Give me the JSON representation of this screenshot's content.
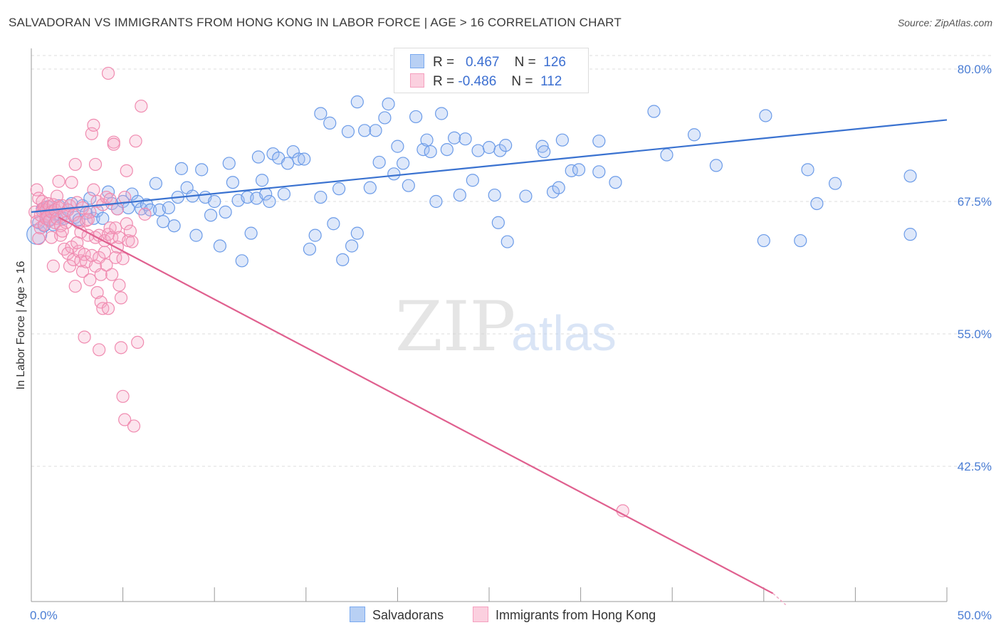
{
  "title": "SALVADORAN VS IMMIGRANTS FROM HONG KONG IN LABOR FORCE | AGE > 16 CORRELATION CHART",
  "source": "Source: ZipAtlas.com",
  "watermark": {
    "zip": "ZIP",
    "atlas": "atlas"
  },
  "legend": {
    "rows": [
      {
        "r_label": "R =",
        "r_value": "0.467",
        "n_label": "N =",
        "n_value": "126",
        "color": "#7aaaf0"
      },
      {
        "r_label": "R =",
        "r_value": "-0.486",
        "n_label": "N =",
        "n_value": "112",
        "color": "#f5a0bf"
      }
    ]
  },
  "chart_data": {
    "type": "scatter",
    "title": "SALVADORAN VS IMMIGRANTS FROM HONG KONG IN LABOR FORCE | AGE > 16 CORRELATION CHART",
    "xlabel": "",
    "ylabel": "In Labor Force | Age > 16",
    "xlim": [
      0,
      50
    ],
    "ylim": [
      30,
      81
    ],
    "x_ticks": [
      "0.0%",
      "50.0%"
    ],
    "y_ticks": [
      {
        "value": 80,
        "label": "80.0%"
      },
      {
        "value": 67.5,
        "label": "67.5%"
      },
      {
        "value": 55,
        "label": "55.0%"
      },
      {
        "value": 42.5,
        "label": "42.5%"
      }
    ],
    "grid": true,
    "legend_position": "top-center",
    "series": [
      {
        "name": "Salvadorans",
        "color": "#6b9be8",
        "trend": {
          "x": [
            0,
            50
          ],
          "y": [
            66.5,
            75.2
          ],
          "color": "#3a72d0"
        },
        "points": [
          [
            0.3,
            64.4
          ],
          [
            0.4,
            65.5
          ],
          [
            0.6,
            66.8
          ],
          [
            0.7,
            65.2
          ],
          [
            0.8,
            66.1
          ],
          [
            0.9,
            67.0
          ],
          [
            1.0,
            65.8
          ],
          [
            1.1,
            66.6
          ],
          [
            1.2,
            65.3
          ],
          [
            1.3,
            66.3
          ],
          [
            1.5,
            67.1
          ],
          [
            1.6,
            66.0
          ],
          [
            1.8,
            65.9
          ],
          [
            2.0,
            66.7
          ],
          [
            2.2,
            67.3
          ],
          [
            2.4,
            66.0
          ],
          [
            2.6,
            65.8
          ],
          [
            2.8,
            67.1
          ],
          [
            3.0,
            66.4
          ],
          [
            3.2,
            67.8
          ],
          [
            3.4,
            65.9
          ],
          [
            3.6,
            66.6
          ],
          [
            3.9,
            65.9
          ],
          [
            4.2,
            68.4
          ],
          [
            4.4,
            67.3
          ],
          [
            4.7,
            66.8
          ],
          [
            5.0,
            67.5
          ],
          [
            5.3,
            66.9
          ],
          [
            5.5,
            68.2
          ],
          [
            5.8,
            67.5
          ],
          [
            6.0,
            66.8
          ],
          [
            6.3,
            67.2
          ],
          [
            6.5,
            66.7
          ],
          [
            6.8,
            69.2
          ],
          [
            7.0,
            66.7
          ],
          [
            7.2,
            65.6
          ],
          [
            7.5,
            66.9
          ],
          [
            7.8,
            65.2
          ],
          [
            8.0,
            67.9
          ],
          [
            8.2,
            70.6
          ],
          [
            8.5,
            68.8
          ],
          [
            8.8,
            68.0
          ],
          [
            9.0,
            64.3
          ],
          [
            9.3,
            70.5
          ],
          [
            9.5,
            67.9
          ],
          [
            9.8,
            66.2
          ],
          [
            10.0,
            67.5
          ],
          [
            10.3,
            63.3
          ],
          [
            10.6,
            66.5
          ],
          [
            10.8,
            71.1
          ],
          [
            11.0,
            69.3
          ],
          [
            11.3,
            67.6
          ],
          [
            11.5,
            61.9
          ],
          [
            11.8,
            67.9
          ],
          [
            12.0,
            64.5
          ],
          [
            12.3,
            67.8
          ],
          [
            12.6,
            69.5
          ],
          [
            12.8,
            68.2
          ],
          [
            13.0,
            67.5
          ],
          [
            13.2,
            72.0
          ],
          [
            13.5,
            71.6
          ],
          [
            13.8,
            68.2
          ],
          [
            14.0,
            71.1
          ],
          [
            14.3,
            72.2
          ],
          [
            14.6,
            71.5
          ],
          [
            14.9,
            71.5
          ],
          [
            15.2,
            63.0
          ],
          [
            15.5,
            64.3
          ],
          [
            15.8,
            75.8
          ],
          [
            15.8,
            67.9
          ],
          [
            16.3,
            74.9
          ],
          [
            16.5,
            65.4
          ],
          [
            16.8,
            68.7
          ],
          [
            17.0,
            62.0
          ],
          [
            17.3,
            74.1
          ],
          [
            17.5,
            63.3
          ],
          [
            17.8,
            76.9
          ],
          [
            17.8,
            64.5
          ],
          [
            18.2,
            74.2
          ],
          [
            18.5,
            68.8
          ],
          [
            18.8,
            74.2
          ],
          [
            19.0,
            71.2
          ],
          [
            19.3,
            75.4
          ],
          [
            19.5,
            76.7
          ],
          [
            19.8,
            70.1
          ],
          [
            20.0,
            72.7
          ],
          [
            20.3,
            71.1
          ],
          [
            20.6,
            69.0
          ],
          [
            21.0,
            75.5
          ],
          [
            21.4,
            72.4
          ],
          [
            21.6,
            73.3
          ],
          [
            21.8,
            72.2
          ],
          [
            22.1,
            67.5
          ],
          [
            22.4,
            75.8
          ],
          [
            22.7,
            72.4
          ],
          [
            23.1,
            73.5
          ],
          [
            23.4,
            68.1
          ],
          [
            23.7,
            73.4
          ],
          [
            24.1,
            69.5
          ],
          [
            24.4,
            72.3
          ],
          [
            25.0,
            72.6
          ],
          [
            25.3,
            68.1
          ],
          [
            25.5,
            65.5
          ],
          [
            25.6,
            72.3
          ],
          [
            25.9,
            72.8
          ],
          [
            26.0,
            63.7
          ],
          [
            27.0,
            68.0
          ],
          [
            27.9,
            72.7
          ],
          [
            28.0,
            72.2
          ],
          [
            28.5,
            68.4
          ],
          [
            28.8,
            68.8
          ],
          [
            29.0,
            73.3
          ],
          [
            29.5,
            70.4
          ],
          [
            29.9,
            70.5
          ],
          [
            31.0,
            73.2
          ],
          [
            31.0,
            70.3
          ],
          [
            31.9,
            69.3
          ],
          [
            34.0,
            76.0
          ],
          [
            34.7,
            71.9
          ],
          [
            36.2,
            73.8
          ],
          [
            37.4,
            70.9
          ],
          [
            40.1,
            75.6
          ],
          [
            42.0,
            63.8
          ],
          [
            42.4,
            70.5
          ],
          [
            42.9,
            67.3
          ],
          [
            43.9,
            69.2
          ],
          [
            48.0,
            69.9
          ],
          [
            48.0,
            64.4
          ],
          [
            40.0,
            63.8
          ],
          [
            12.4,
            71.7
          ]
        ]
      },
      {
        "name": "Immigrants from Hong Kong",
        "color": "#f08bb0",
        "trend": {
          "x": [
            1.5,
            40.5
          ],
          "y": [
            66.0,
            30.5
          ],
          "color": "#e0608f"
        },
        "points": [
          [
            0.2,
            66.5
          ],
          [
            0.3,
            65.6
          ],
          [
            0.3,
            68.6
          ],
          [
            0.4,
            67.8
          ],
          [
            0.5,
            66.2
          ],
          [
            0.5,
            65.0
          ],
          [
            0.6,
            66.6
          ],
          [
            0.6,
            67.5
          ],
          [
            0.7,
            65.3
          ],
          [
            0.7,
            66.9
          ],
          [
            0.8,
            66.7
          ],
          [
            0.8,
            65.9
          ],
          [
            0.9,
            67.3
          ],
          [
            0.9,
            66.1
          ],
          [
            1.0,
            65.7
          ],
          [
            1.0,
            67.0
          ],
          [
            1.1,
            66.5
          ],
          [
            1.1,
            64.1
          ],
          [
            1.2,
            67.2
          ],
          [
            1.2,
            61.4
          ],
          [
            1.3,
            65.5
          ],
          [
            1.3,
            66.7
          ],
          [
            1.4,
            65.9
          ],
          [
            1.4,
            68.0
          ],
          [
            1.5,
            66.9
          ],
          [
            1.5,
            69.4
          ],
          [
            1.6,
            65.2
          ],
          [
            1.6,
            64.3
          ],
          [
            1.7,
            67.1
          ],
          [
            1.8,
            66.3
          ],
          [
            1.8,
            63.0
          ],
          [
            1.9,
            65.5
          ],
          [
            2.0,
            66.7
          ],
          [
            2.0,
            62.6
          ],
          [
            2.1,
            67.1
          ],
          [
            2.1,
            61.4
          ],
          [
            2.2,
            63.2
          ],
          [
            2.2,
            69.3
          ],
          [
            2.3,
            62.0
          ],
          [
            2.3,
            66.2
          ],
          [
            2.4,
            71.0
          ],
          [
            2.4,
            59.5
          ],
          [
            2.5,
            67.4
          ],
          [
            2.6,
            62.8
          ],
          [
            2.6,
            65.5
          ],
          [
            2.7,
            64.6
          ],
          [
            2.7,
            61.9
          ],
          [
            2.8,
            66.9
          ],
          [
            2.8,
            60.9
          ],
          [
            2.9,
            62.5
          ],
          [
            2.9,
            54.7
          ],
          [
            3.0,
            65.7
          ],
          [
            3.0,
            61.8
          ],
          [
            3.1,
            64.3
          ],
          [
            3.2,
            66.5
          ],
          [
            3.2,
            60.1
          ],
          [
            3.3,
            62.4
          ],
          [
            3.3,
            73.9
          ],
          [
            3.4,
            74.7
          ],
          [
            3.4,
            68.6
          ],
          [
            3.5,
            61.4
          ],
          [
            3.5,
            64.1
          ],
          [
            3.5,
            71.0
          ],
          [
            3.6,
            67.5
          ],
          [
            3.6,
            58.9
          ],
          [
            3.7,
            64.3
          ],
          [
            3.7,
            62.2
          ],
          [
            3.7,
            53.5
          ],
          [
            3.8,
            60.6
          ],
          [
            3.8,
            58.0
          ],
          [
            3.9,
            57.4
          ],
          [
            3.9,
            67.2
          ],
          [
            4.0,
            62.7
          ],
          [
            4.0,
            63.8
          ],
          [
            4.1,
            67.9
          ],
          [
            4.1,
            61.5
          ],
          [
            4.2,
            64.4
          ],
          [
            4.2,
            57.4
          ],
          [
            4.3,
            67.7
          ],
          [
            4.3,
            65.0
          ],
          [
            4.4,
            64.1
          ],
          [
            4.4,
            60.6
          ],
          [
            4.5,
            73.1
          ],
          [
            4.5,
            72.9
          ],
          [
            4.6,
            62.2
          ],
          [
            4.6,
            65.0
          ],
          [
            4.7,
            63.2
          ],
          [
            4.8,
            59.6
          ],
          [
            4.8,
            64.1
          ],
          [
            4.9,
            58.4
          ],
          [
            4.9,
            53.7
          ],
          [
            5.0,
            62.1
          ],
          [
            5.0,
            49.1
          ],
          [
            5.1,
            67.9
          ],
          [
            5.1,
            46.9
          ],
          [
            5.2,
            70.4
          ],
          [
            5.2,
            65.4
          ],
          [
            5.3,
            63.8
          ],
          [
            5.4,
            64.7
          ],
          [
            5.5,
            63.7
          ],
          [
            5.6,
            46.3
          ],
          [
            5.7,
            73.2
          ],
          [
            5.8,
            54.2
          ],
          [
            6.0,
            76.5
          ],
          [
            4.2,
            79.6
          ],
          [
            32.3,
            38.3
          ],
          [
            3.1,
            65.8
          ],
          [
            2.5,
            63.6
          ],
          [
            1.7,
            64.7
          ],
          [
            0.4,
            64.0
          ],
          [
            6.2,
            66.3
          ],
          [
            4.7,
            66.8
          ]
        ]
      }
    ]
  },
  "bottom_legend": [
    {
      "label": "Salvadorans",
      "color": "#7aaaf0"
    },
    {
      "label": "Immigrants from Hong Kong",
      "color": "#f5a0bf"
    }
  ]
}
